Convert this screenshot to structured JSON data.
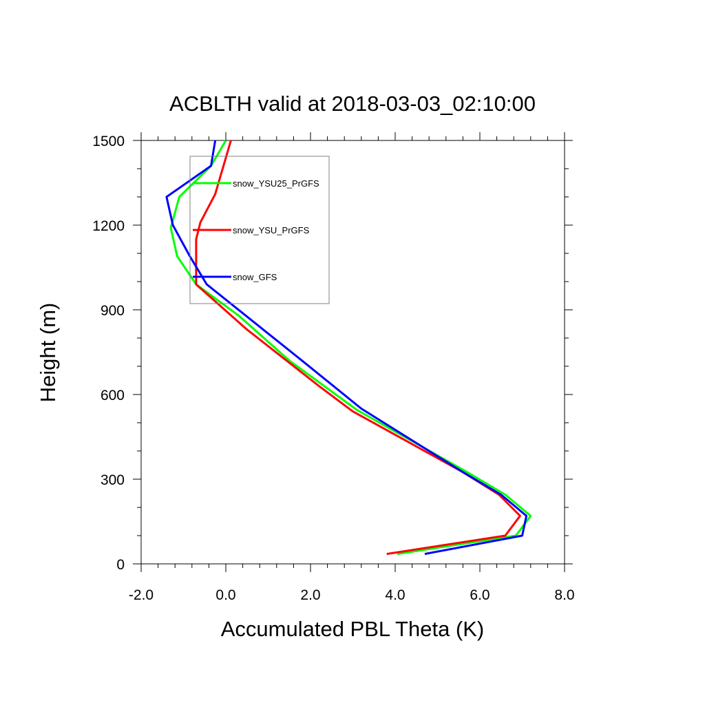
{
  "chart_data": {
    "type": "line",
    "title": "ACBLTH valid at 2018-03-03_02:10:00",
    "xlabel": "Accumulated PBL Theta (K)",
    "ylabel": "Height (m)",
    "xlim": [
      -2.0,
      8.0
    ],
    "ylim": [
      0,
      1500
    ],
    "x_ticks": [
      -2.0,
      0.0,
      2.0,
      4.0,
      6.0,
      8.0
    ],
    "x_tick_labels": [
      "-2.0",
      "0.0",
      "2.0",
      "4.0",
      "6.0",
      "8.0"
    ],
    "y_ticks": [
      0,
      300,
      600,
      900,
      1200,
      1500
    ],
    "y_tick_labels": [
      "0",
      "300",
      "600",
      "900",
      "1200",
      "1500"
    ],
    "grid": false,
    "legend_position": "top-left",
    "series": [
      {
        "name": "snow_YSU25_PrGFS",
        "color": "#00ff00",
        "points": [
          [
            4.05,
            35
          ],
          [
            6.85,
            100
          ],
          [
            7.2,
            170
          ],
          [
            6.6,
            245
          ],
          [
            5.7,
            325
          ],
          [
            3.1,
            545
          ],
          [
            1.5,
            720
          ],
          [
            0.3,
            880
          ],
          [
            -0.7,
            990
          ],
          [
            -1.15,
            1090
          ],
          [
            -1.3,
            1190
          ],
          [
            -1.1,
            1300
          ],
          [
            -0.35,
            1410
          ],
          [
            0.0,
            1500
          ]
        ]
      },
      {
        "name": "snow_YSU_PrGFS",
        "color": "#ff0000",
        "points": [
          [
            3.8,
            35
          ],
          [
            6.6,
            100
          ],
          [
            6.95,
            170
          ],
          [
            6.45,
            245
          ],
          [
            5.6,
            325
          ],
          [
            3.0,
            540
          ],
          [
            2.2,
            630
          ],
          [
            0.5,
            830
          ],
          [
            -0.7,
            990
          ],
          [
            -0.7,
            1150
          ],
          [
            -0.6,
            1210
          ],
          [
            -0.25,
            1310
          ],
          [
            0.12,
            1500
          ]
        ]
      },
      {
        "name": "snow_GFS",
        "color": "#0000ff",
        "points": [
          [
            4.7,
            35
          ],
          [
            7.0,
            100
          ],
          [
            7.1,
            170
          ],
          [
            6.5,
            245
          ],
          [
            5.6,
            325
          ],
          [
            3.2,
            550
          ],
          [
            1.8,
            720
          ],
          [
            -0.45,
            990
          ],
          [
            -0.85,
            1090
          ],
          [
            -1.25,
            1200
          ],
          [
            -1.4,
            1300
          ],
          [
            -0.35,
            1410
          ],
          [
            -0.25,
            1500
          ]
        ]
      }
    ]
  }
}
